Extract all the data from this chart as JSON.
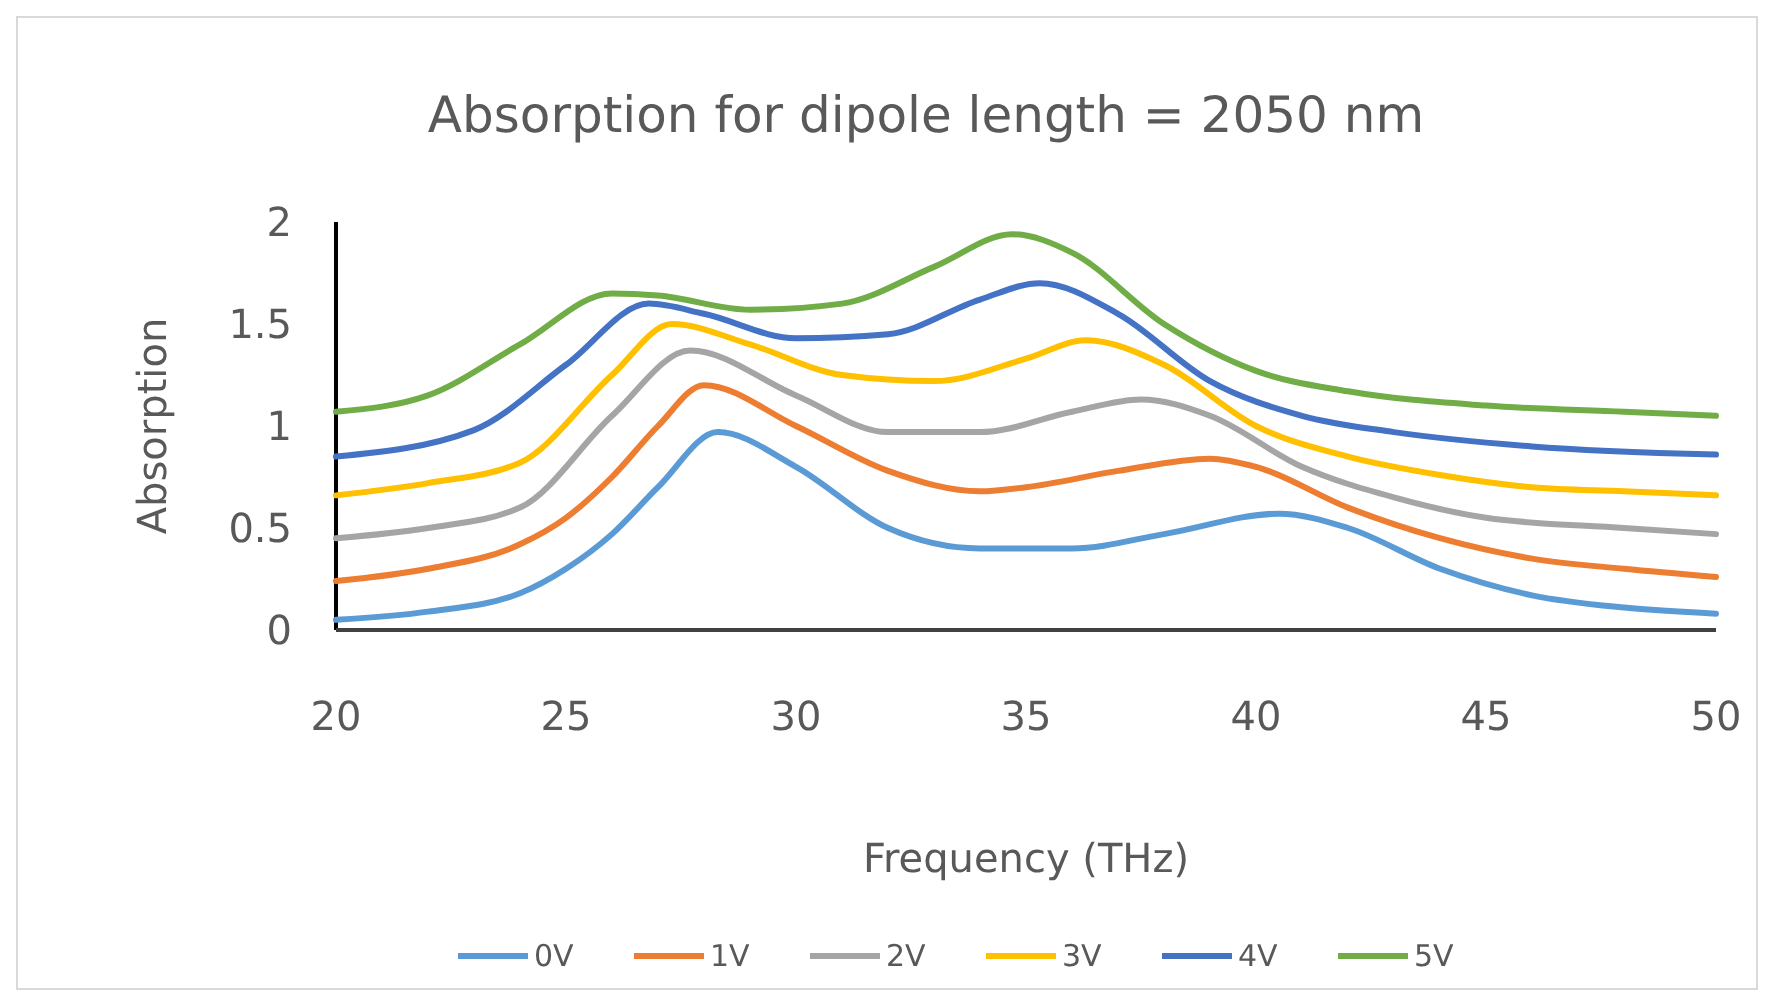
{
  "chart_data": {
    "type": "line",
    "title": "Absorption for dipole length = 2050 nm",
    "xlabel": "Frequency (THz)",
    "ylabel": "Absorption",
    "xlim": [
      20,
      50
    ],
    "xticks": [
      20,
      25,
      30,
      35,
      40,
      45,
      50
    ],
    "ylim": [
      0,
      2
    ],
    "yticks": [
      0,
      0.5,
      1,
      1.5,
      2
    ],
    "grid": false,
    "legend": "bottom",
    "marker": "none",
    "line_style": "solid",
    "series": [
      {
        "name": "0V",
        "color": "#5b9bd5",
        "x": [
          20,
          22,
          24,
          25,
          26,
          27,
          28.3,
          30,
          32,
          34,
          36,
          38,
          40.5,
          42,
          44,
          46,
          48,
          50
        ],
        "values": [
          0.05,
          0.09,
          0.18,
          0.3,
          0.47,
          0.7,
          0.97,
          0.8,
          0.5,
          0.4,
          0.4,
          0.47,
          0.57,
          0.5,
          0.3,
          0.17,
          0.11,
          0.08
        ]
      },
      {
        "name": "1V",
        "color": "#ed7d31",
        "x": [
          20,
          22,
          24,
          25,
          26,
          27,
          28,
          30,
          32,
          34,
          35,
          37,
          39,
          40,
          42,
          44,
          46,
          48,
          50
        ],
        "values": [
          0.24,
          0.3,
          0.42,
          0.55,
          0.75,
          1.0,
          1.2,
          1.0,
          0.78,
          0.68,
          0.7,
          0.78,
          0.84,
          0.8,
          0.6,
          0.45,
          0.35,
          0.3,
          0.26
        ]
      },
      {
        "name": "2V",
        "color": "#a5a5a5",
        "x": [
          20,
          22,
          24,
          26,
          27.7,
          30,
          32,
          34,
          36,
          37.5,
          39,
          41,
          43,
          45,
          48,
          50
        ],
        "values": [
          0.45,
          0.5,
          0.6,
          1.05,
          1.37,
          1.15,
          0.97,
          0.97,
          1.07,
          1.13,
          1.05,
          0.8,
          0.65,
          0.55,
          0.5,
          0.47
        ]
      },
      {
        "name": "3V",
        "color": "#ffc000",
        "x": [
          20,
          22,
          24,
          26,
          27.3,
          29,
          31,
          33,
          35,
          36.3,
          38,
          40,
          42,
          44,
          46,
          48,
          50
        ],
        "values": [
          0.66,
          0.72,
          0.82,
          1.25,
          1.5,
          1.4,
          1.25,
          1.22,
          1.33,
          1.42,
          1.3,
          1.0,
          0.85,
          0.76,
          0.7,
          0.68,
          0.66
        ]
      },
      {
        "name": "4V",
        "color": "#4472c4",
        "x": [
          20,
          23,
          25,
          26.8,
          28,
          30,
          32,
          34,
          35.3,
          37,
          39,
          41,
          43,
          46,
          50
        ],
        "values": [
          0.85,
          0.98,
          1.3,
          1.6,
          1.55,
          1.43,
          1.45,
          1.62,
          1.7,
          1.55,
          1.22,
          1.05,
          0.97,
          0.9,
          0.86
        ]
      },
      {
        "name": "5V",
        "color": "#70ad47",
        "x": [
          20,
          22,
          24,
          26,
          27,
          29,
          31,
          33,
          34.7,
          36,
          38,
          40,
          42,
          45,
          48,
          50
        ],
        "values": [
          1.07,
          1.15,
          1.4,
          1.65,
          1.64,
          1.57,
          1.6,
          1.78,
          1.94,
          1.85,
          1.5,
          1.27,
          1.17,
          1.1,
          1.07,
          1.05
        ]
      }
    ]
  }
}
